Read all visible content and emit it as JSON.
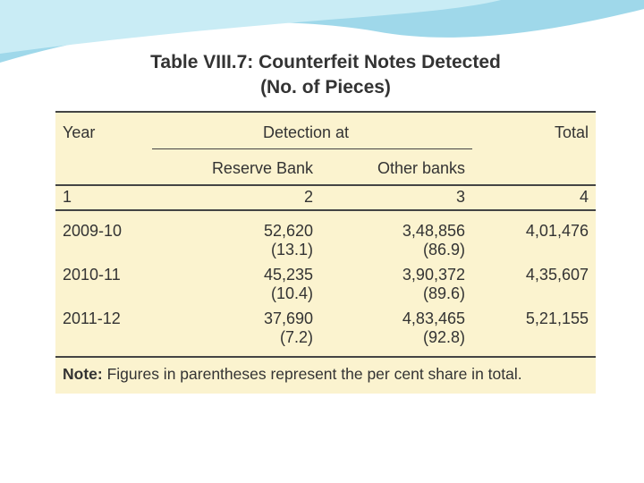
{
  "title": {
    "line1": "Table VIII.7: Counterfeit Notes Detected",
    "line2": "(No. of Pieces)"
  },
  "table": {
    "header": {
      "year": "Year",
      "detection": "Detection at",
      "total": "Total",
      "reserve": "Reserve Bank",
      "other": "Other banks"
    },
    "numbering": [
      "1",
      "2",
      "3",
      "4"
    ],
    "rows": [
      {
        "year": "2009-10",
        "reserve": "52,620",
        "reserve_share": "(13.1)",
        "other": "3,48,856",
        "other_share": "(86.9)",
        "total": "4,01,476"
      },
      {
        "year": "2010-11",
        "reserve": "45,235",
        "reserve_share": "(10.4)",
        "other": "3,90,372",
        "other_share": "(89.6)",
        "total": "4,35,607"
      },
      {
        "year": "2011-12",
        "reserve": "37,690",
        "reserve_share": "(7.2)",
        "other": "4,83,465",
        "other_share": "(92.8)",
        "total": "5,21,155"
      }
    ],
    "note_label": "Note:",
    "note": "Figures in parentheses represent the per cent share in total."
  }
}
